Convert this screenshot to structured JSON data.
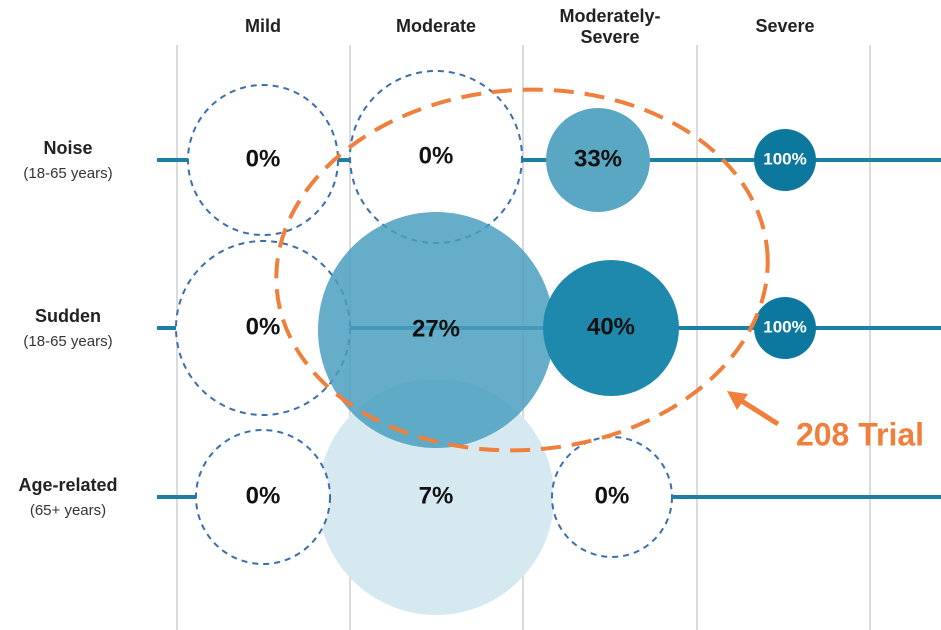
{
  "columns": [
    "Mild",
    "Moderate",
    "Moderately-\nSevere",
    "Severe"
  ],
  "rows": [
    {
      "name": "Noise",
      "sub": "(18-65 years)",
      "cells": [
        "0%",
        "0%",
        "33%",
        "100%"
      ]
    },
    {
      "name": "Sudden",
      "sub": "(18-65 years)",
      "cells": [
        "0%",
        "27%",
        "40%",
        "100%"
      ]
    },
    {
      "name": "Age-related",
      "sub": "(65+ years)",
      "cells": [
        "0%",
        "7%",
        "0%",
        null
      ]
    }
  ],
  "annotation": "208 Trial"
}
